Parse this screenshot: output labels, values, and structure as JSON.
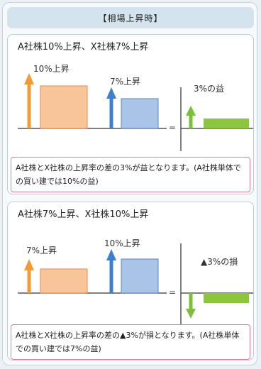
{
  "header": {
    "title": "【相場上昇時】"
  },
  "scenario1": {
    "title": "A社株10%上昇、X社株7%上昇",
    "bar_a_label": "10%上昇",
    "bar_x_label": "7%上昇",
    "result_label": "3%の益",
    "note": "A社株とX社株の上昇率の差の3%が益となります。(A社株単体での買い建では10%の益)"
  },
  "scenario2": {
    "title": "A社株7%上昇、X社株10%上昇",
    "bar_a_label": "7%上昇",
    "bar_x_label": "10%上昇",
    "result_label": "▲3%の損",
    "note": "A社株とX社株の上昇率の差の▲3%が損となります。(A社株単体での買い建では7%の益)"
  },
  "colors": {
    "orange_fill": "#f8c49a",
    "orange_border": "#e8894a",
    "orange_arrow": "#f39a3a",
    "blue_fill": "#a9c4e6",
    "blue_border": "#5b86c4",
    "blue_arrow": "#3f7fd0",
    "green_fill": "#8cc63f",
    "green_arrow": "#7cbf3a"
  }
}
